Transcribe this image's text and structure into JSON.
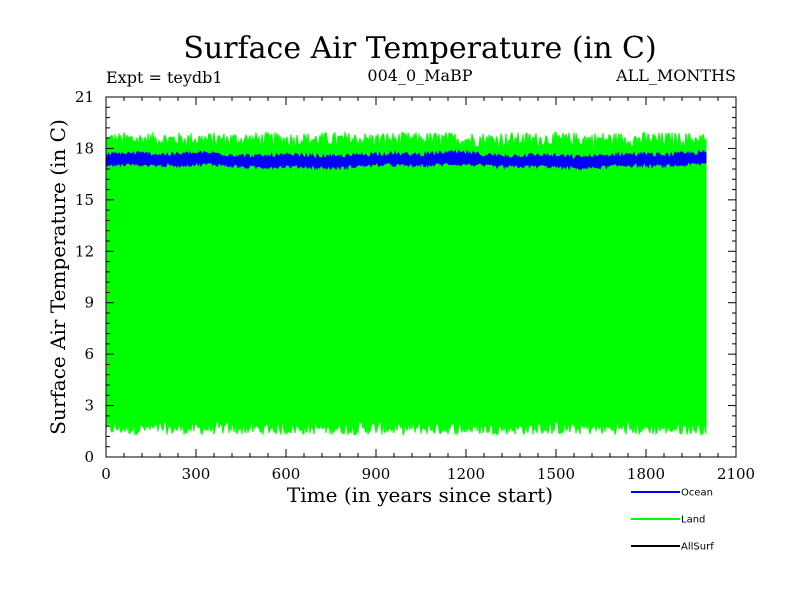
{
  "chart_data": {
    "type": "line",
    "title": "Surface Air Temperature (in C)",
    "subtitle_left": "Expt = teydb1",
    "subtitle_center": "004_0_MaBP",
    "subtitle_right": "ALL_MONTHS",
    "xlabel": "Time (in years since start)",
    "ylabel": "Surface Air Temperature (in C)",
    "xlim": [
      0,
      2100
    ],
    "ylim": [
      0,
      21
    ],
    "xticks": [
      "0",
      "300",
      "600",
      "900",
      "1200",
      "1500",
      "1800",
      "2100"
    ],
    "yticks": [
      "0",
      "3",
      "6",
      "9",
      "12",
      "15",
      "18",
      "21"
    ],
    "x_range": [
      0,
      2000
    ],
    "series": [
      {
        "name": "Land",
        "color": "#00ff00",
        "approx_max": 18.5,
        "approx_min": 1.7
      },
      {
        "name": "Ocean",
        "color": "#0000ff",
        "approx_max": 17.6,
        "approx_min": 17.0
      },
      {
        "name": "AllSurf",
        "color": "#000000"
      }
    ]
  }
}
